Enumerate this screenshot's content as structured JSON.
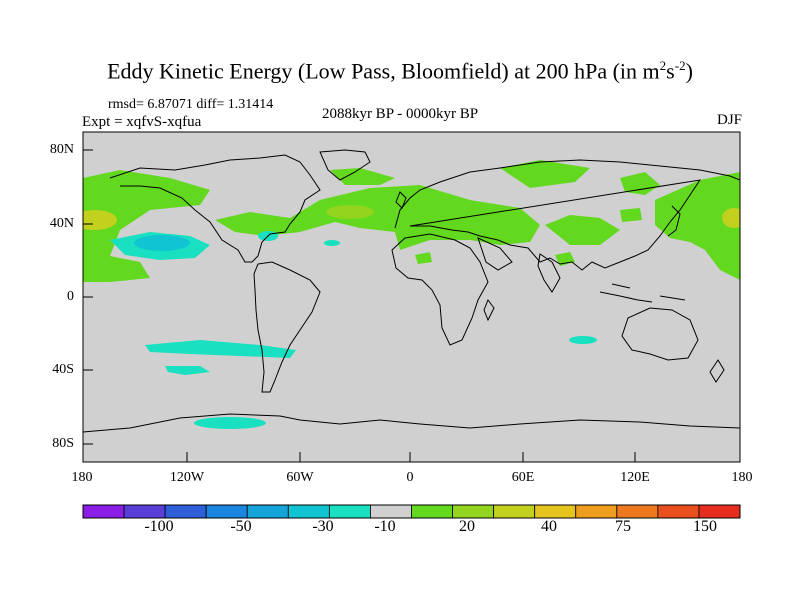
{
  "title": {
    "main": "Eddy Kinetic Energy (Low Pass, Bloomfield) at 200 hPa (in m",
    "exp1": "2",
    "mid": "s",
    "exp2": "-2",
    "close": ")"
  },
  "stats": "rmsd= 6.87071 diff= 1.31414",
  "experiment": "Expt = xqfvS-xqfua",
  "period": "2088kyr BP - 0000kyr BP",
  "season": "DJF",
  "lat_labels": [
    "80N",
    "40N",
    "0",
    "40S",
    "80S"
  ],
  "lon_labels": [
    "180",
    "120W",
    "60W",
    "0",
    "60E",
    "120E",
    "180"
  ],
  "colorbar": {
    "colors": [
      "#8a1ee6",
      "#5a3ed8",
      "#2e5ed8",
      "#1a86e0",
      "#14a4d8",
      "#10c4d2",
      "#18e0c0",
      "#d0d0d0",
      "#62d81e",
      "#92d41e",
      "#c2d01e",
      "#e6c41e",
      "#ee9e1e",
      "#ee781e",
      "#ea501e",
      "#e62e1e"
    ],
    "labels": [
      "-100",
      "-50",
      "-30",
      "-10",
      "20",
      "40",
      "75",
      "150"
    ]
  },
  "map": {
    "background": "#d0d0d0",
    "coast": "#000000"
  }
}
